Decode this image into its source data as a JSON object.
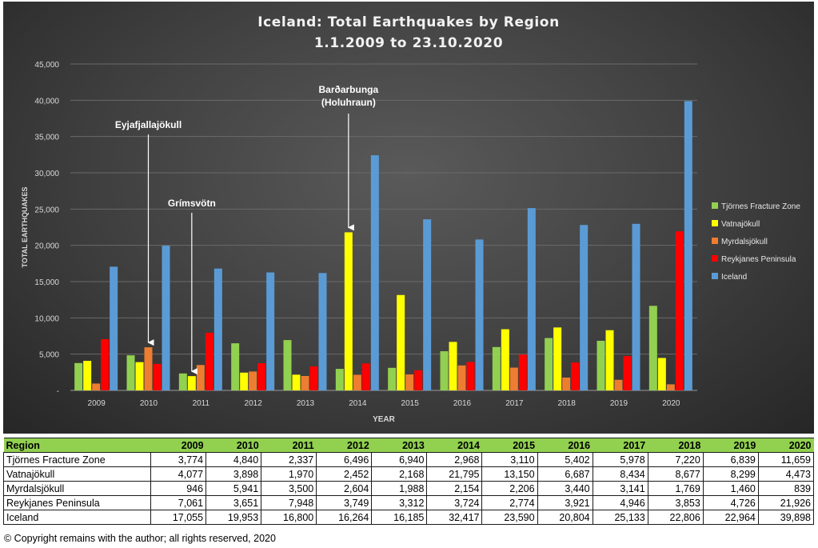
{
  "chart_data": {
    "type": "bar",
    "title": "Iceland: Total Earthquakes by Region",
    "subtitle": "1.1.2009 to 23.10.2020",
    "xlabel": "YEAR",
    "ylabel": "TOTAL EARTHQUAKES",
    "ylim": [
      0,
      45000
    ],
    "yticks": [
      "-",
      "5,000",
      "10,000",
      "15,000",
      "20,000",
      "25,000",
      "30,000",
      "35,000",
      "40,000",
      "45,000"
    ],
    "categories": [
      "2009",
      "2010",
      "2011",
      "2012",
      "2013",
      "2014",
      "2015",
      "2016",
      "2017",
      "2018",
      "2019",
      "2020"
    ],
    "series": [
      {
        "name": "Tjörnes Fracture Zone",
        "color": "#92d050",
        "values": [
          3774,
          4840,
          2337,
          6496,
          6940,
          2968,
          3110,
          5402,
          5978,
          7220,
          6839,
          11659
        ]
      },
      {
        "name": "Vatnajökull",
        "color": "#ffff00",
        "values": [
          4077,
          3898,
          1970,
          2452,
          2168,
          21795,
          13150,
          6687,
          8434,
          8677,
          8299,
          4473
        ]
      },
      {
        "name": "Myrdalsjökull",
        "color": "#ed7d31",
        "values": [
          946,
          5941,
          3500,
          2604,
          1988,
          2154,
          2206,
          3440,
          3141,
          1769,
          1460,
          839
        ]
      },
      {
        "name": "Reykjanes Peninsula",
        "color": "#ff0000",
        "values": [
          7061,
          3651,
          7948,
          3749,
          3312,
          3724,
          2774,
          3921,
          4946,
          3853,
          4726,
          21926
        ]
      },
      {
        "name": "Iceland",
        "color": "#5b9bd5",
        "values": [
          17055,
          19953,
          16800,
          16264,
          16185,
          32417,
          23590,
          20804,
          25133,
          22806,
          22964,
          39898
        ]
      }
    ],
    "legend_position": "right",
    "grid": true,
    "annotations": [
      {
        "text": "Eyjafjallajökull",
        "category": "2010",
        "series": "Myrdalsjökull"
      },
      {
        "text": "Grímsvötn",
        "category": "2011",
        "series": "Vatnajökull"
      },
      {
        "text": "Barðarbunga",
        "text2": "(Holuhraun)",
        "category": "2014",
        "series": "Vatnajökull"
      }
    ]
  },
  "table": {
    "header_label": "Region",
    "years": [
      "2009",
      "2010",
      "2011",
      "2012",
      "2013",
      "2014",
      "2015",
      "2016",
      "2017",
      "2018",
      "2019",
      "2020"
    ],
    "rows": [
      {
        "label": "Tjörnes Fracture Zone",
        "values": [
          "3,774",
          "4,840",
          "2,337",
          "6,496",
          "6,940",
          "2,968",
          "3,110",
          "5,402",
          "5,978",
          "7,220",
          "6,839",
          "11,659"
        ]
      },
      {
        "label": "Vatnajökull",
        "values": [
          "4,077",
          "3,898",
          "1,970",
          "2,452",
          "2,168",
          "21,795",
          "13,150",
          "6,687",
          "8,434",
          "8,677",
          "8,299",
          "4,473"
        ]
      },
      {
        "label": "Myrdalsjökull",
        "values": [
          "946",
          "5,941",
          "3,500",
          "2,604",
          "1,988",
          "2,154",
          "2,206",
          "3,440",
          "3,141",
          "1,769",
          "1,460",
          "839"
        ]
      },
      {
        "label": "Reykjanes Peninsula",
        "values": [
          "7,061",
          "3,651",
          "7,948",
          "3,749",
          "3,312",
          "3,724",
          "2,774",
          "3,921",
          "4,946",
          "3,853",
          "4,726",
          "21,926"
        ]
      },
      {
        "label": "Iceland",
        "values": [
          "17,055",
          "19,953",
          "16,800",
          "16,264",
          "16,185",
          "32,417",
          "23,590",
          "20,804",
          "25,133",
          "22,806",
          "22,964",
          "39,898"
        ]
      }
    ]
  },
  "copyright": "© Copyright remains with the author; all rights reserved, 2020"
}
